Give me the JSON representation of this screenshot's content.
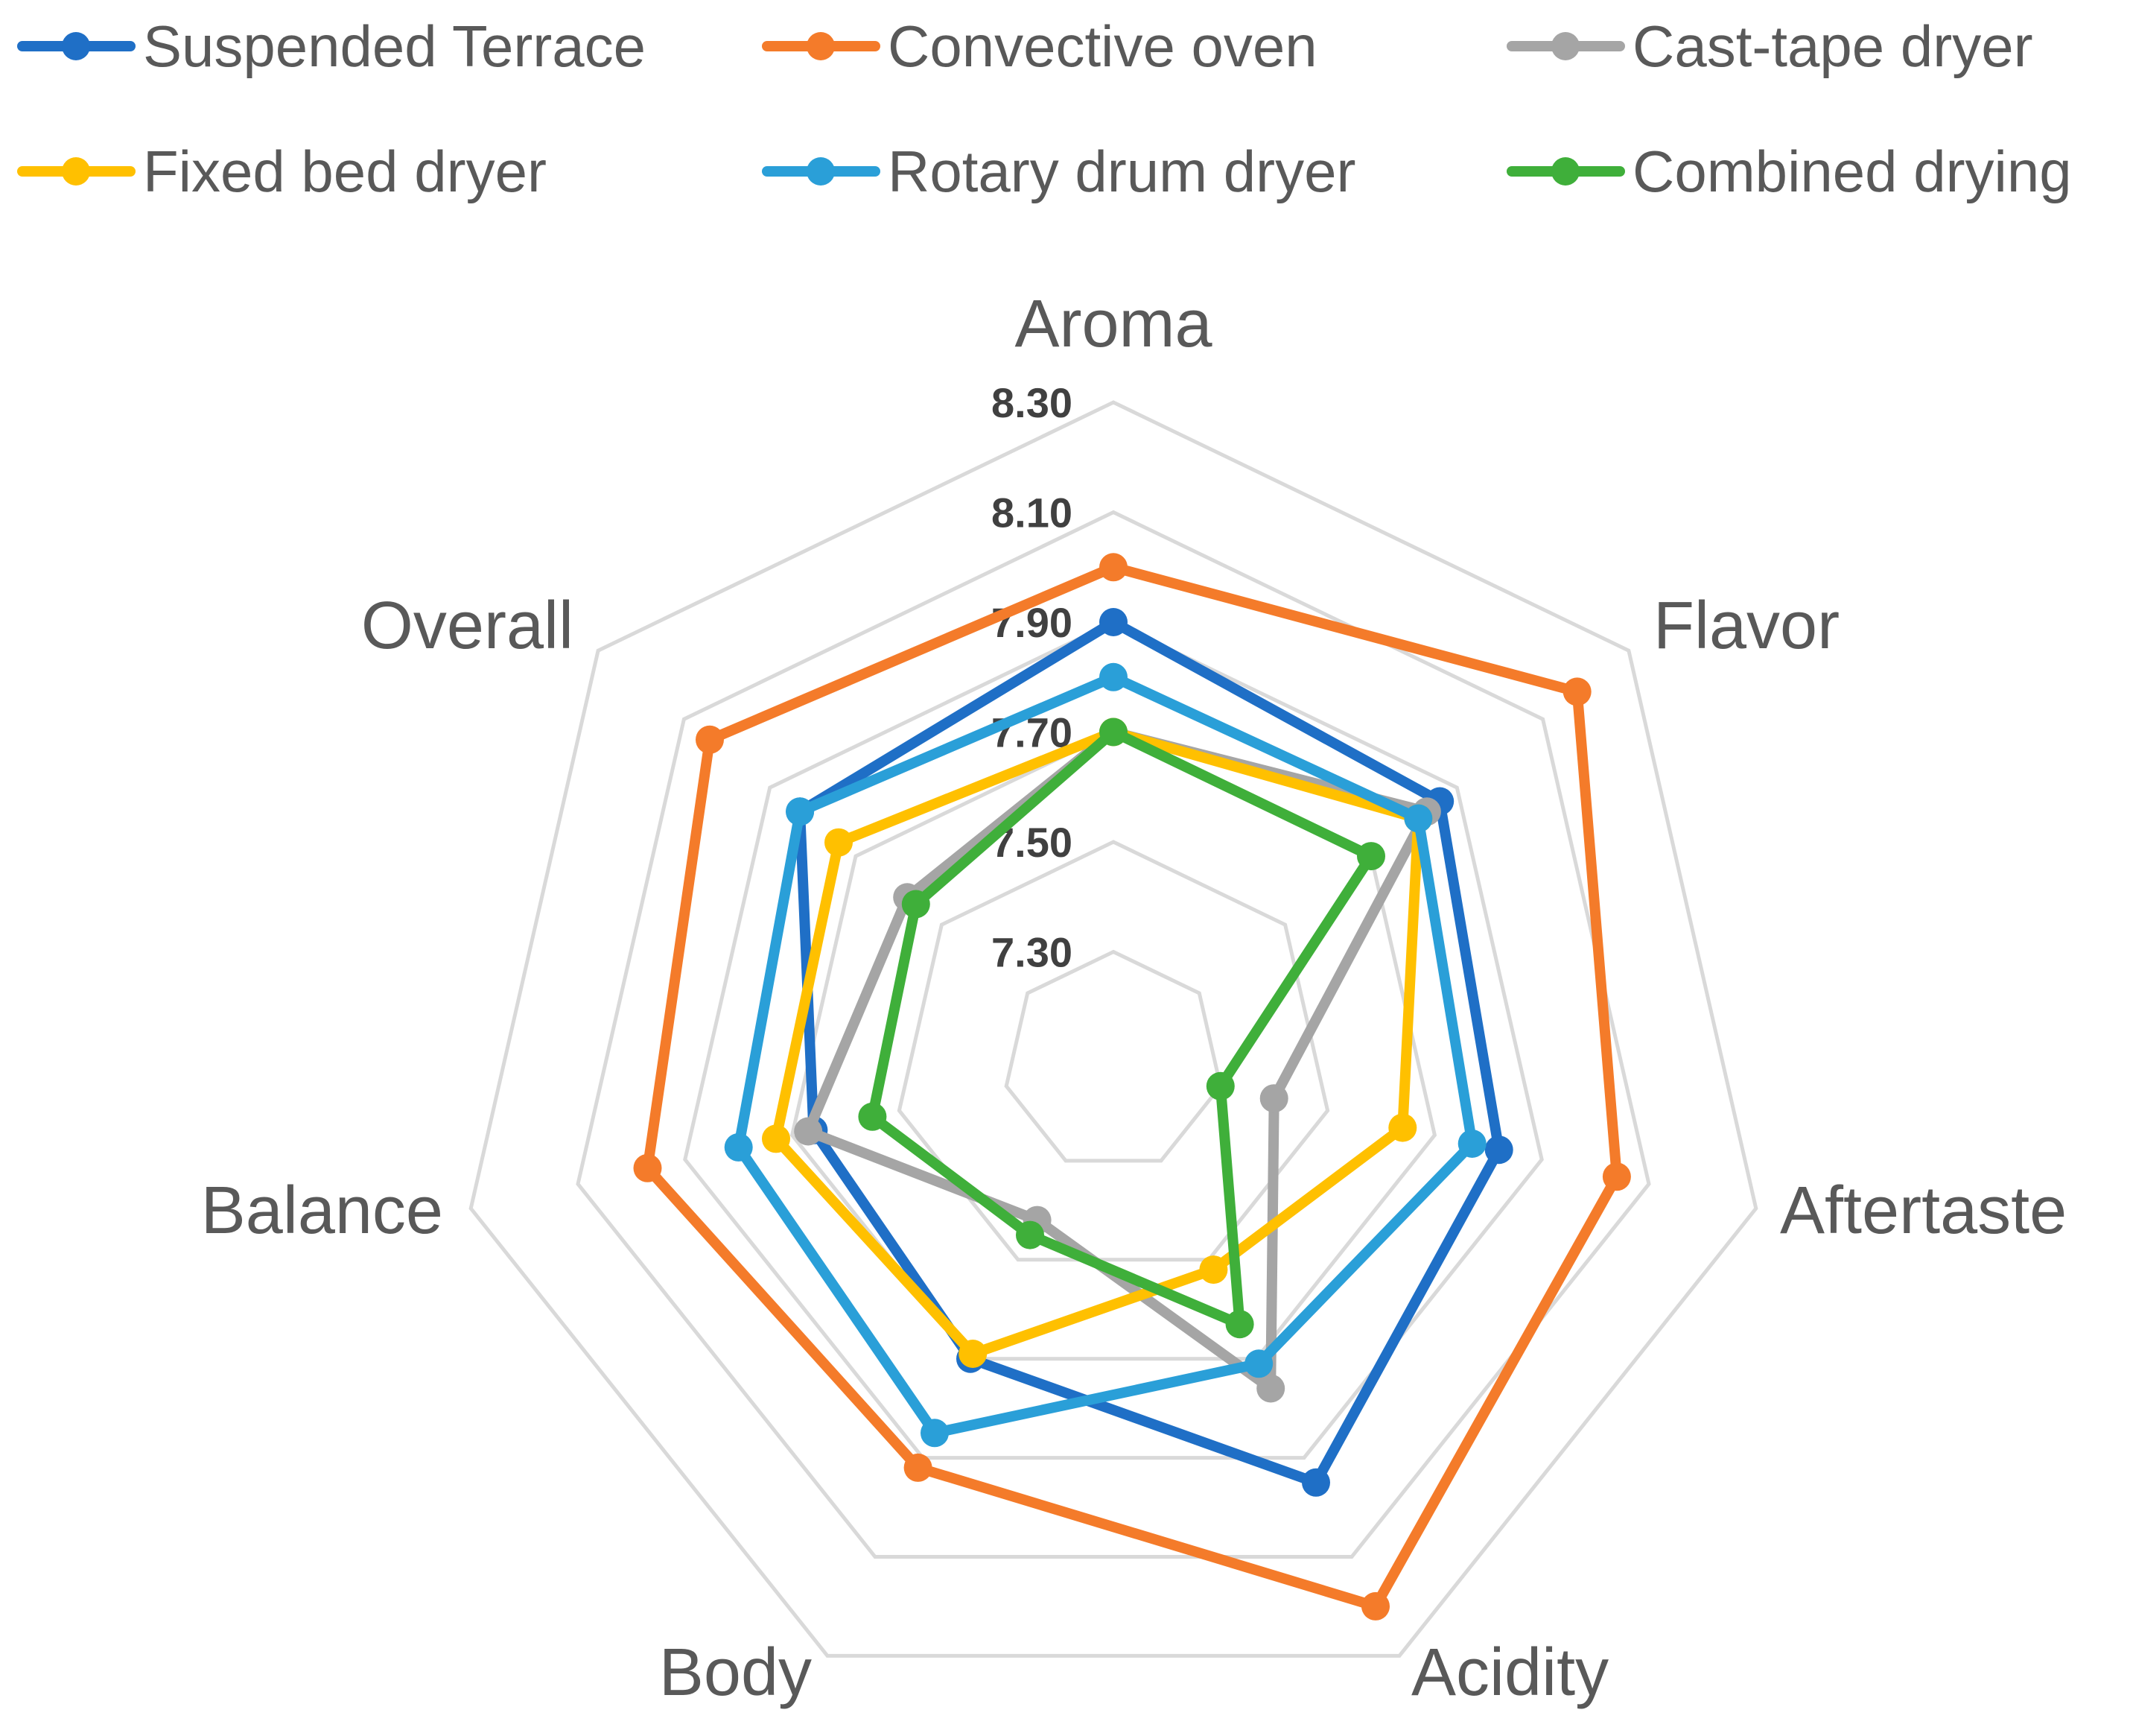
{
  "chart_data": {
    "type": "radar",
    "categories": [
      "Aroma",
      "Flavor",
      "Aftertaste",
      "Acidity",
      "Body",
      "Balance",
      "Overall"
    ],
    "ticks": [
      "7.30",
      "7.50",
      "7.70",
      "7.90",
      "8.10",
      "8.30"
    ],
    "rlim": [
      7.1,
      8.3
    ],
    "grid": true,
    "legend": "top",
    "series": [
      {
        "name": "Suspended Terrace",
        "color": "#1F6FC6",
        "values": [
          7.9,
          7.86,
          7.82,
          7.95,
          7.7,
          7.66,
          7.83
        ]
      },
      {
        "name": "Convective oven",
        "color": "#F47B2A",
        "values": [
          8.0,
          8.18,
          8.04,
          8.2,
          7.92,
          7.97,
          8.04
        ]
      },
      {
        "name": "Cast-tape dryer",
        "color": "#A5A5A5",
        "values": [
          7.7,
          7.83,
          7.4,
          7.76,
          7.42,
          7.67,
          7.58
        ]
      },
      {
        "name": "Fixed bed dryer",
        "color": "#FFC000",
        "values": [
          7.7,
          7.81,
          7.64,
          7.52,
          7.69,
          7.73,
          7.74
        ]
      },
      {
        "name": "Rotary drum dryer",
        "color": "#2A9FD8",
        "values": [
          7.8,
          7.81,
          7.77,
          7.71,
          7.85,
          7.8,
          7.83
        ]
      },
      {
        "name": "Combined drying",
        "color": "#3FAF3A",
        "values": [
          7.7,
          7.7,
          7.3,
          7.63,
          7.45,
          7.55,
          7.56
        ]
      }
    ]
  }
}
